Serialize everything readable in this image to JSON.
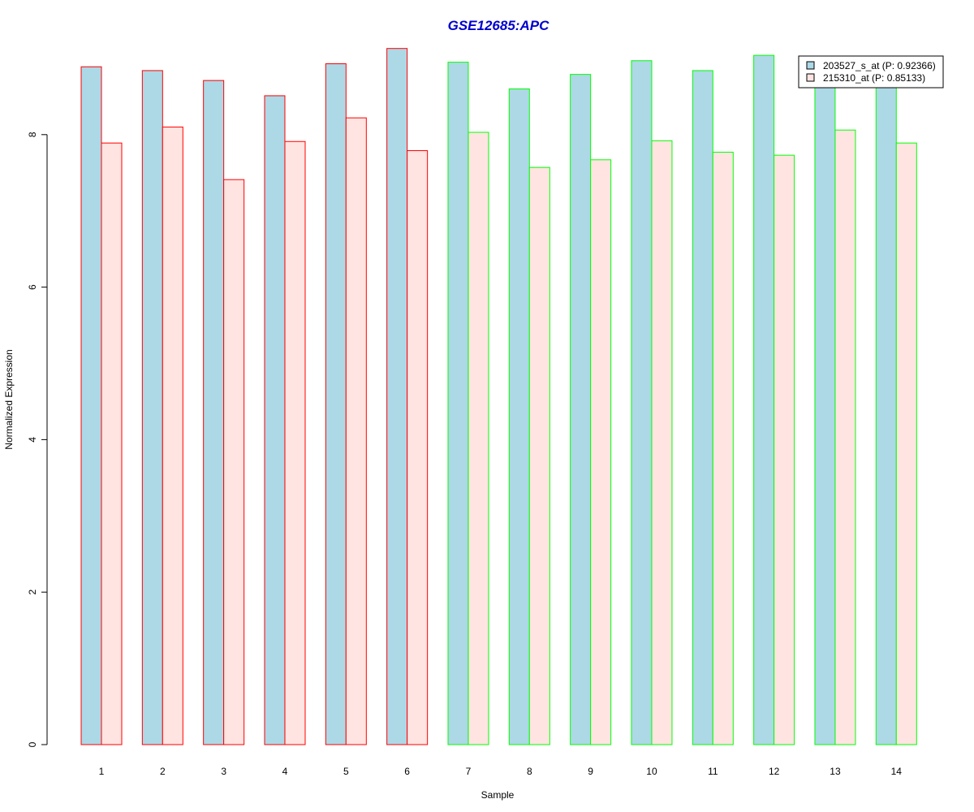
{
  "chart_data": {
    "type": "bar",
    "title": "GSE12685:APC",
    "xlabel": "Sample",
    "ylabel": "Normalized Expression",
    "categories": [
      "1",
      "2",
      "3",
      "4",
      "5",
      "6",
      "7",
      "8",
      "9",
      "10",
      "11",
      "12",
      "13",
      "14"
    ],
    "ylim": [
      0,
      9.15
    ],
    "yticks": [
      0,
      2,
      4,
      6,
      8
    ],
    "grid": false,
    "legend_position": "top-right",
    "series": [
      {
        "name": "203527_s_at (P: 0.92366)",
        "fill": "#add8e6",
        "values": [
          8.89,
          8.84,
          8.71,
          8.51,
          8.93,
          9.13,
          8.95,
          8.6,
          8.79,
          8.97,
          8.84,
          9.04,
          8.65,
          8.63
        ]
      },
      {
        "name": "215310_at (P: 0.85133)",
        "fill": "#ffe4e1",
        "values": [
          7.89,
          8.1,
          7.41,
          7.91,
          8.22,
          7.79,
          8.03,
          7.57,
          7.67,
          7.92,
          7.77,
          7.73,
          8.06,
          7.89
        ]
      }
    ],
    "group_border_colors": [
      "#ff0000",
      "#ff0000",
      "#ff0000",
      "#ff0000",
      "#ff0000",
      "#ff0000",
      "#00ff00",
      "#00ff00",
      "#00ff00",
      "#00ff00",
      "#00ff00",
      "#00ff00",
      "#00ff00",
      "#00ff00"
    ],
    "title_color": "#0000cd"
  }
}
